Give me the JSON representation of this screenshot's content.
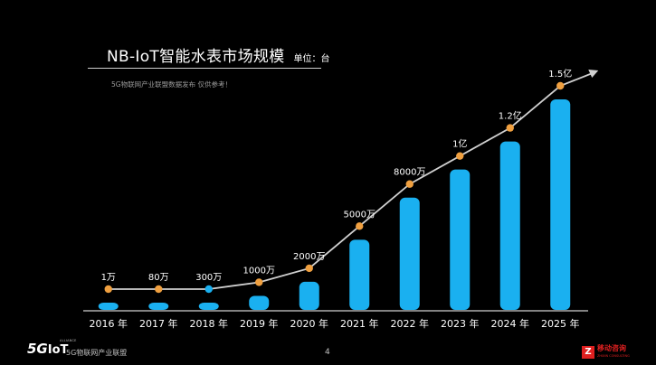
{
  "chart_data": {
    "type": "bar",
    "title": "NB-IoT智能水表市场规模",
    "unit_label": "单位：台",
    "source_note": "5G物联网产业联盟数据发布  仅供参考！",
    "categories": [
      "2016 年",
      "2017 年",
      "2018 年",
      "2019 年",
      "2020 年",
      "2021 年",
      "2022 年",
      "2023 年",
      "2024 年",
      "2025 年"
    ],
    "values": [
      10000,
      800000,
      3000000,
      10000000,
      20000000,
      50000000,
      80000000,
      100000000,
      120000000,
      150000000
    ],
    "data_labels": [
      "1万",
      "80万",
      "300万",
      "1000万",
      "2000万",
      "5000万",
      "8000万",
      "1亿",
      "1.2亿",
      "1.5亿"
    ],
    "bar_color": "#1ab0f0",
    "marker_colors": [
      "#f0a040",
      "#f0a040",
      "#1ab0f0",
      "#f0a040",
      "#f0a040",
      "#f0a040",
      "#f0a040",
      "#f0a040",
      "#f0a040",
      "#f0a040"
    ],
    "line_color": "#d0d0d0",
    "grid": false,
    "legend": "none"
  },
  "footer": {
    "logo_5g": "5G",
    "logo_iot": "IoT",
    "logo_tag": "ALLIANCE",
    "org": "5G物联网产业联盟",
    "page_number": "4"
  },
  "watermark": {
    "badge": "Z",
    "name": "移动咨询",
    "sub": "ZHIXIN CONSULTING"
  }
}
